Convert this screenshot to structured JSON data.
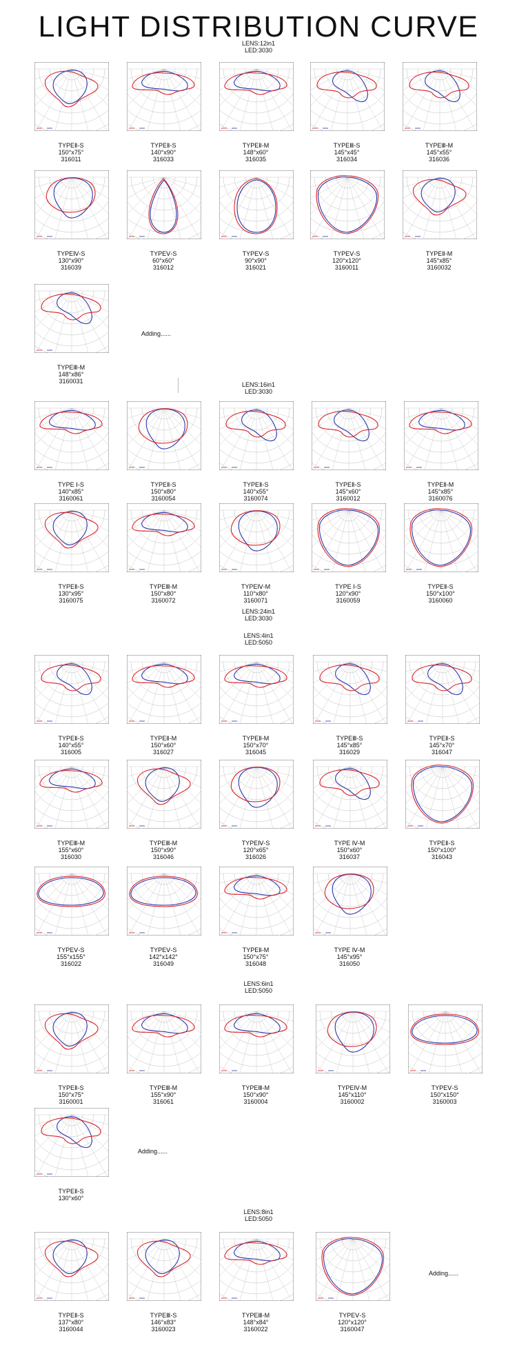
{
  "title": "LIGHT DISTRIBUTION CURVE",
  "sections": [
    {
      "lens": "LENS:12in1",
      "led": "LED:3030",
      "adding": "Adding......",
      "items": [
        {
          "type": "TYPEⅡ-S",
          "dim": "150°x75°",
          "code": "316011",
          "shape": "t2"
        },
        {
          "type": "TYPEⅡ-S",
          "dim": "140°x90°",
          "code": "316033",
          "shape": "t2w"
        },
        {
          "type": "TYPEⅡ-M",
          "dim": "148°x60°",
          "code": "316035",
          "shape": "t2w"
        },
        {
          "type": "TYPEⅢ-S",
          "dim": "145°x45°",
          "code": "316034",
          "shape": "t3"
        },
        {
          "type": "TYPEⅢ-M",
          "dim": "145°x55°",
          "code": "316036",
          "shape": "t3"
        },
        {
          "type": "TYPEⅣ-S",
          "dim": "130°x90°",
          "code": "316039",
          "shape": "t4"
        },
        {
          "type": "TYPEⅤ-S",
          "dim": "60°x60°",
          "code": "316012",
          "shape": "drop"
        },
        {
          "type": "TYPEⅤ-S",
          "dim": "90°x90°",
          "code": "316021",
          "shape": "drop2"
        },
        {
          "type": "TYPEⅤ-S",
          "dim": "120°x120°",
          "code": "3160011",
          "shape": "round"
        },
        {
          "type": "TYPEⅡ-M",
          "dim": "145°x85°",
          "code": "3160032",
          "shape": "t2"
        },
        {
          "type": "TYPEⅢ-M",
          "dim": "148°x86°",
          "code": "3160031",
          "shape": "t3"
        }
      ]
    },
    {
      "lens": "LENS:16in1",
      "led": "LED:3030",
      "items": [
        {
          "type": "TYPE Ⅰ-S",
          "dim": "140°x85°",
          "code": "3160061",
          "shape": "t2w"
        },
        {
          "type": "TYPEⅡ-S",
          "dim": "150°x80°",
          "code": "3160054",
          "shape": "t4"
        },
        {
          "type": "TYPEⅡ-S",
          "dim": "140°x55°",
          "code": "3160074",
          "shape": "t3"
        },
        {
          "type": "TYPEⅡ-S",
          "dim": "145°x60°",
          "code": "3160012",
          "shape": "t3"
        },
        {
          "type": "TYPEⅡ-M",
          "dim": "145°x85°",
          "code": "3160076",
          "shape": "t2w"
        },
        {
          "type": "TYPEⅡ-S",
          "dim": "130°x95°",
          "code": "3160075",
          "shape": "t2"
        },
        {
          "type": "TYPEⅢ-M",
          "dim": "150°x80°",
          "code": "3160072",
          "shape": "t2w"
        },
        {
          "type": "TYPEⅣ-M",
          "dim": "110°x80°",
          "code": "3160071",
          "shape": "t4"
        },
        {
          "type": "TYPE Ⅰ-S",
          "dim": "120°x90°",
          "code": "3160059",
          "shape": "round"
        },
        {
          "type": "TYPEⅡ-S",
          "dim": "150°x100°",
          "code": "3160060",
          "shape": "round"
        }
      ]
    },
    {
      "lens": "LENS:24in1",
      "led": "LED:3030",
      "lens2": "LENS:4in1",
      "led2": "LED:5050",
      "items": [
        {
          "type": "TYPEⅡ-S",
          "dim": "140°x55°",
          "code": "316005",
          "shape": "t3"
        },
        {
          "type": "TYPEⅡ-M",
          "dim": "150°x60°",
          "code": "316027",
          "shape": "t2w"
        },
        {
          "type": "TYPEⅡ-M",
          "dim": "150°x70°",
          "code": "316045",
          "shape": "t2w"
        },
        {
          "type": "TYPEⅢ-S",
          "dim": "145°x85°",
          "code": "316029",
          "shape": "t3"
        },
        {
          "type": "TYPEⅡ-S",
          "dim": "145°x70°",
          "code": "316047",
          "shape": "t3"
        },
        {
          "type": "TYPEⅢ-M",
          "dim": "155°x60°",
          "code": "316030",
          "shape": "t2w"
        },
        {
          "type": "TYPEⅢ-M",
          "dim": "150°x90°",
          "code": "316046",
          "shape": "t2"
        },
        {
          "type": "TYPEⅣ-S",
          "dim": "120°x65°",
          "code": "316026",
          "shape": "t4"
        },
        {
          "type": "TYPE Ⅳ-M",
          "dim": "150°x60°",
          "code": "316037",
          "shape": "t3"
        },
        {
          "type": "TYPEⅡ-S",
          "dim": "150°x100°",
          "code": "316043",
          "shape": "round"
        },
        {
          "type": "TYPEⅤ-S",
          "dim": "155°x155°",
          "code": "316022",
          "shape": "flat"
        },
        {
          "type": "TYPEⅤ-S",
          "dim": "142°x142°",
          "code": "316049",
          "shape": "flat"
        },
        {
          "type": "TYPEⅡ-M",
          "dim": "150°x75°",
          "code": "316048",
          "shape": "t2w"
        },
        {
          "type": "TYPE Ⅳ-M",
          "dim": "145°x95°",
          "code": "316050",
          "shape": "t4"
        }
      ]
    },
    {
      "lens": "LENS:6in1",
      "led": "LED:5050",
      "adding": "Adding......",
      "items": [
        {
          "type": "TYPEⅡ-S",
          "dim": "150°x75°",
          "code": "3160001",
          "shape": "t2"
        },
        {
          "type": "TYPEⅢ-M",
          "dim": "155°x90°",
          "code": "316061",
          "shape": "t2w"
        },
        {
          "type": "TYPEⅢ-M",
          "dim": "150°x90°",
          "code": "3160004",
          "shape": "t2w"
        },
        {
          "type": "TYPEⅣ-M",
          "dim": "145°x110°",
          "code": "3160002",
          "shape": "t4"
        },
        {
          "type": "TYPEⅤ-S",
          "dim": "150°x150°",
          "code": "3160003",
          "shape": "flat"
        },
        {
          "type": "TYPEⅡ-S",
          "dim": "130°x60°",
          "code": "",
          "shape": "t3"
        }
      ]
    },
    {
      "lens": "LENS:8in1",
      "led": "LED:5050",
      "adding": "Adding......",
      "items": [
        {
          "type": "TYPEⅡ-S",
          "dim": "137°x80°",
          "code": "3160044",
          "shape": "t2"
        },
        {
          "type": "TYPEⅢ-S",
          "dim": "146°x83°",
          "code": "3160023",
          "shape": "t2"
        },
        {
          "type": "TYPEⅢ-M",
          "dim": "148°x84°",
          "code": "3160022",
          "shape": "t2w"
        },
        {
          "type": "TYPEⅤ-S",
          "dim": "120°x120°",
          "code": "3160047",
          "shape": "round"
        }
      ]
    }
  ],
  "colors": {
    "c0": "#d9232b",
    "c90": "#2a36a8",
    "grid": "#bdbdbd",
    "frame": "#555555"
  }
}
